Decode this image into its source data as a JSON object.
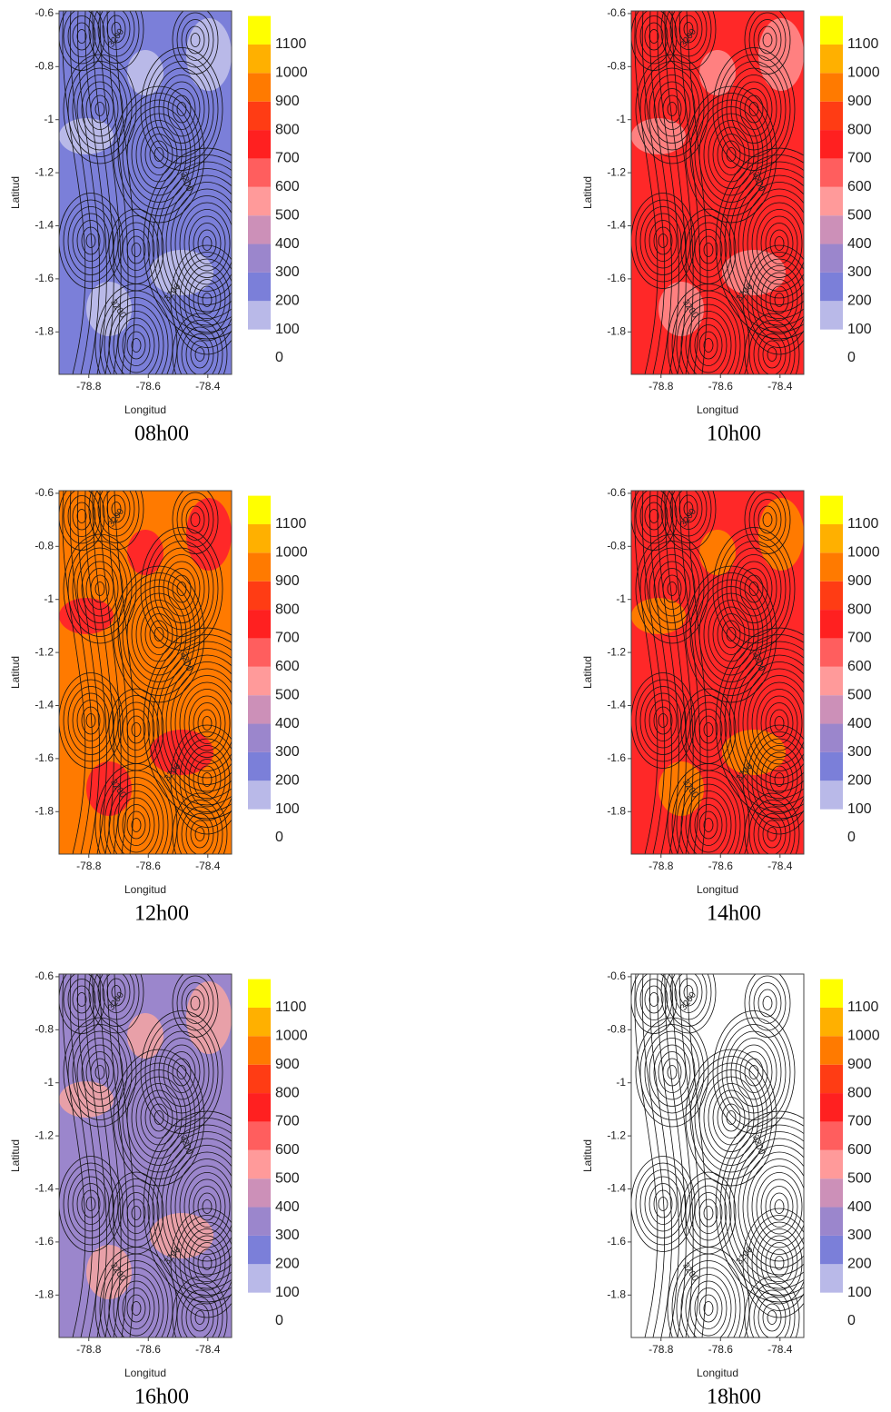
{
  "chart_data": [
    {
      "type": "contour",
      "title": "08h00",
      "x_label": "Longitud",
      "y_label": "Latitud",
      "xlim": [
        -78.9,
        -78.32
      ],
      "ylim": [
        -1.96,
        -0.59
      ],
      "xticks": [
        -78.8,
        -78.6,
        -78.4
      ],
      "yticks": [
        -0.6,
        -0.8,
        -1,
        -1.2,
        -1.4,
        -1.6,
        -1.8
      ],
      "contour_labels": [
        3200,
        3200,
        3200,
        3200
      ],
      "base_color": "#7b7fd9",
      "accent_color": "#b9b9e8",
      "colorbar": {
        "lim": [
          0,
          1200
        ],
        "ticks": [
          0,
          100,
          200,
          300,
          400,
          500,
          600,
          700,
          800,
          900,
          1000,
          1100
        ],
        "colors": [
          "#ffffff",
          "#b9b9e8",
          "#7b7fd9",
          "#9b86cc",
          "#cc90b8",
          "#ff9a9a",
          "#ff5e5e",
          "#ff2020",
          "#ff3c14",
          "#ff7a00",
          "#ffb000",
          "#ffff00"
        ]
      }
    },
    {
      "type": "contour",
      "title": "10h00",
      "x_label": "Longitud",
      "y_label": "Latitud",
      "xlim": [
        -78.9,
        -78.32
      ],
      "ylim": [
        -1.96,
        -0.59
      ],
      "xticks": [
        -78.8,
        -78.6,
        -78.4
      ],
      "yticks": [
        -0.6,
        -0.8,
        -1,
        -1.2,
        -1.4,
        -1.6,
        -1.8
      ],
      "contour_labels": [
        3200,
        3200,
        3200,
        3200
      ],
      "base_color": "#ff2828",
      "accent_color": "#ff8080",
      "colorbar": {
        "lim": [
          0,
          1200
        ],
        "ticks": [
          0,
          100,
          200,
          300,
          400,
          500,
          600,
          700,
          800,
          900,
          1000,
          1100
        ],
        "colors": [
          "#ffffff",
          "#b9b9e8",
          "#7b7fd9",
          "#9b86cc",
          "#cc90b8",
          "#ff9a9a",
          "#ff5e5e",
          "#ff2020",
          "#ff3c14",
          "#ff7a00",
          "#ffb000",
          "#ffff00"
        ]
      }
    },
    {
      "type": "contour",
      "title": "12h00",
      "x_label": "Longitud",
      "y_label": "Latitud",
      "xlim": [
        -78.9,
        -78.32
      ],
      "ylim": [
        -1.96,
        -0.59
      ],
      "xticks": [
        -78.8,
        -78.6,
        -78.4
      ],
      "yticks": [
        -0.6,
        -0.8,
        -1,
        -1.2,
        -1.4,
        -1.6,
        -1.8
      ],
      "contour_labels": [
        3200,
        3200,
        3200,
        3200
      ],
      "base_color": "#ff7a00",
      "accent_color": "#ff2828",
      "colorbar": {
        "lim": [
          0,
          1200
        ],
        "ticks": [
          0,
          100,
          200,
          300,
          400,
          500,
          600,
          700,
          800,
          900,
          1000,
          1100
        ],
        "colors": [
          "#ffffff",
          "#b9b9e8",
          "#7b7fd9",
          "#9b86cc",
          "#cc90b8",
          "#ff9a9a",
          "#ff5e5e",
          "#ff2020",
          "#ff3c14",
          "#ff7a00",
          "#ffb000",
          "#ffff00"
        ]
      }
    },
    {
      "type": "contour",
      "title": "14h00",
      "x_label": "Longitud",
      "y_label": "Latitud",
      "xlim": [
        -78.9,
        -78.32
      ],
      "ylim": [
        -1.96,
        -0.59
      ],
      "xticks": [
        -78.8,
        -78.6,
        -78.4
      ],
      "yticks": [
        -0.6,
        -0.8,
        -1,
        -1.2,
        -1.4,
        -1.6,
        -1.8
      ],
      "contour_labels": [
        3200,
        3200,
        3200,
        3200
      ],
      "base_color": "#ff2828",
      "accent_color": "#ff7a00",
      "colorbar": {
        "lim": [
          0,
          1200
        ],
        "ticks": [
          0,
          100,
          200,
          300,
          400,
          500,
          600,
          700,
          800,
          900,
          1000,
          1100
        ],
        "colors": [
          "#ffffff",
          "#b9b9e8",
          "#7b7fd9",
          "#9b86cc",
          "#cc90b8",
          "#ff9a9a",
          "#ff5e5e",
          "#ff2020",
          "#ff3c14",
          "#ff7a00",
          "#ffb000",
          "#ffff00"
        ]
      }
    },
    {
      "type": "contour",
      "title": "16h00",
      "x_label": "Longitud",
      "y_label": "Latitud",
      "xlim": [
        -78.9,
        -78.32
      ],
      "ylim": [
        -1.96,
        -0.59
      ],
      "xticks": [
        -78.8,
        -78.6,
        -78.4
      ],
      "yticks": [
        -0.6,
        -0.8,
        -1,
        -1.2,
        -1.4,
        -1.6,
        -1.8
      ],
      "contour_labels": [
        3200,
        3200,
        3200,
        3200
      ],
      "base_color": "#9b86cc",
      "accent_color": "#e8a0a8",
      "colorbar": {
        "lim": [
          0,
          1200
        ],
        "ticks": [
          0,
          100,
          200,
          300,
          400,
          500,
          600,
          700,
          800,
          900,
          1000,
          1100
        ],
        "colors": [
          "#ffffff",
          "#b9b9e8",
          "#7b7fd9",
          "#9b86cc",
          "#cc90b8",
          "#ff9a9a",
          "#ff5e5e",
          "#ff2020",
          "#ff3c14",
          "#ff7a00",
          "#ffb000",
          "#ffff00"
        ]
      }
    },
    {
      "type": "contour",
      "title": "18h00",
      "x_label": "Longitud",
      "y_label": "Latitud",
      "xlim": [
        -78.9,
        -78.32
      ],
      "ylim": [
        -1.96,
        -0.59
      ],
      "xticks": [
        -78.8,
        -78.6,
        -78.4
      ],
      "yticks": [
        -0.6,
        -0.8,
        -1,
        -1.2,
        -1.4,
        -1.6,
        -1.8
      ],
      "contour_labels": [
        3200,
        3200,
        3200,
        3200
      ],
      "base_color": "#ffffff",
      "accent_color": "#ffffff",
      "colorbar": {
        "lim": [
          0,
          1200
        ],
        "ticks": [
          0,
          100,
          200,
          300,
          400,
          500,
          600,
          700,
          800,
          900,
          1000,
          1100
        ],
        "colors": [
          "#ffffff",
          "#b9b9e8",
          "#7b7fd9",
          "#9b86cc",
          "#cc90b8",
          "#ff9a9a",
          "#ff5e5e",
          "#ff2020",
          "#ff3c14",
          "#ff7a00",
          "#ffb000",
          "#ffff00"
        ]
      }
    }
  ]
}
